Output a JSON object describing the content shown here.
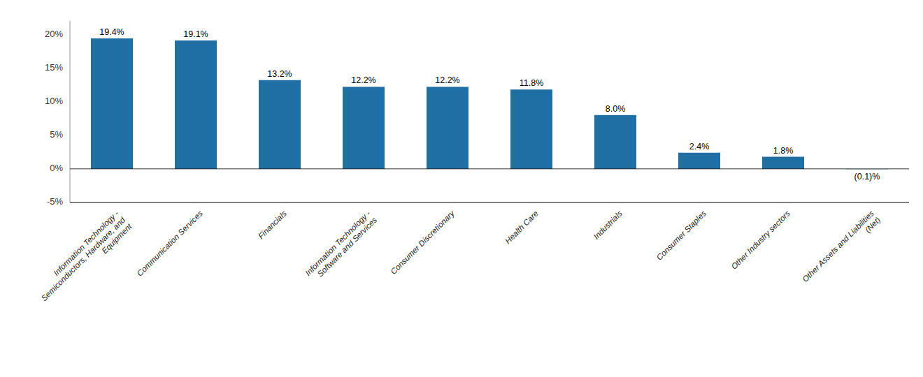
{
  "chart_data": {
    "type": "bar",
    "categories": [
      "Information Technology -\nSemiconductors, Hardware, and\nEquipment",
      "Communication Services",
      "Financials",
      "Information Technology -\nSoftware and Services",
      "Consumer Discretionary",
      "Health Care",
      "Industrials",
      "Consumer Staples",
      "Other Industry sectors",
      "Other Assets and Liabilities\n(Net)"
    ],
    "values": [
      19.4,
      19.1,
      13.2,
      12.2,
      12.2,
      11.8,
      8.0,
      2.4,
      1.8,
      -0.1
    ],
    "value_labels": [
      "19.4%",
      "19.1%",
      "13.2%",
      "12.2%",
      "12.2%",
      "11.8%",
      "8.0%",
      "2.4%",
      "1.8%",
      "(0.1)%"
    ],
    "colors": [
      "#1F6FA5",
      "#1F6FA5",
      "#1F6FA5",
      "#1F6FA5",
      "#1F6FA5",
      "#1F6FA5",
      "#1F6FA5",
      "#1F6FA5",
      "#1F6FA5",
      "#A8C8E0"
    ],
    "data_labels": true,
    "grid": false,
    "ylim": [
      -5,
      22
    ],
    "yticks": [
      {
        "value": -5,
        "label": "-5%"
      },
      {
        "value": 0,
        "label": "0%"
      },
      {
        "value": 5,
        "label": "5%"
      },
      {
        "value": 10,
        "label": "10%"
      },
      {
        "value": 15,
        "label": "15%"
      },
      {
        "value": 20,
        "label": "20%"
      }
    ]
  }
}
